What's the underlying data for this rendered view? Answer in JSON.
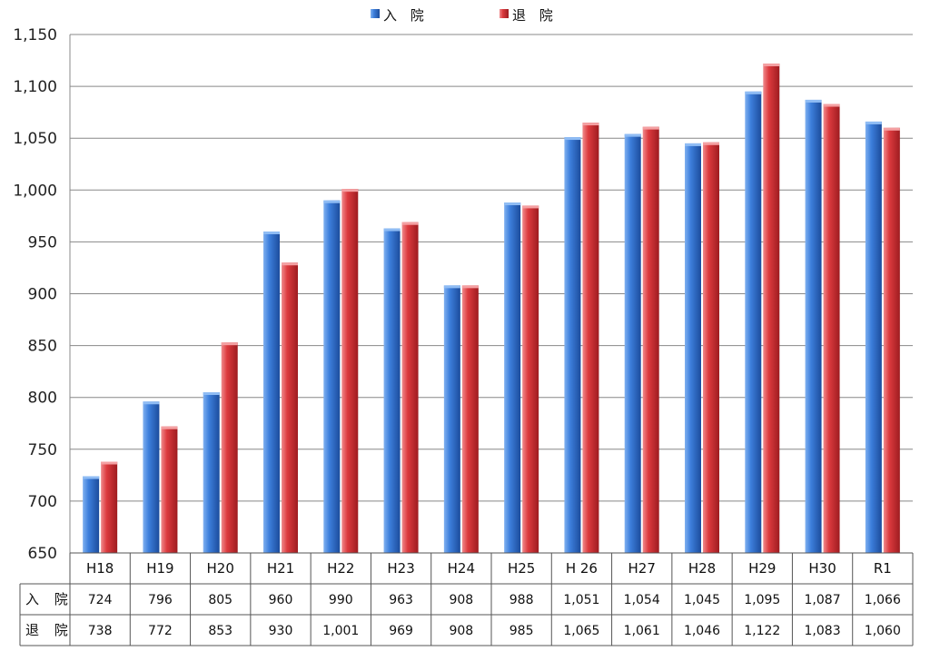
{
  "chart_data": {
    "type": "bar",
    "categories": [
      "H18",
      "H19",
      "H20",
      "H21",
      "H22",
      "H23",
      "H24",
      "H25",
      "H 26",
      "H27",
      "H28",
      "H29",
      "H30",
      "R1"
    ],
    "series": [
      {
        "name": "入 院",
        "color": "#2f6fce",
        "values": [
          724,
          796,
          805,
          960,
          990,
          963,
          908,
          988,
          1051,
          1054,
          1045,
          1095,
          1087,
          1066
        ],
        "labels": [
          "724",
          "796",
          "805",
          "960",
          "990",
          "963",
          "908",
          "988",
          "1,051",
          "1,054",
          "1,045",
          "1,095",
          "1,087",
          "1,066"
        ]
      },
      {
        "name": "退 院",
        "color": "#d9363a",
        "values": [
          738,
          772,
          853,
          930,
          1001,
          969,
          908,
          985,
          1065,
          1061,
          1046,
          1122,
          1083,
          1060
        ],
        "labels": [
          "738",
          "772",
          "853",
          "930",
          "1,001",
          "969",
          "908",
          "985",
          "1,065",
          "1,061",
          "1,046",
          "1,122",
          "1,083",
          "1,060"
        ]
      }
    ],
    "yticks": [
      "650",
      "700",
      "750",
      "800",
      "850",
      "900",
      "950",
      "1,000",
      "1,050",
      "1,100",
      "1,150"
    ],
    "ylim": [
      650,
      1150
    ],
    "ystep": 50,
    "grid": true,
    "legend": "top-center",
    "table_rows": [
      "入 院",
      "退 院"
    ]
  }
}
